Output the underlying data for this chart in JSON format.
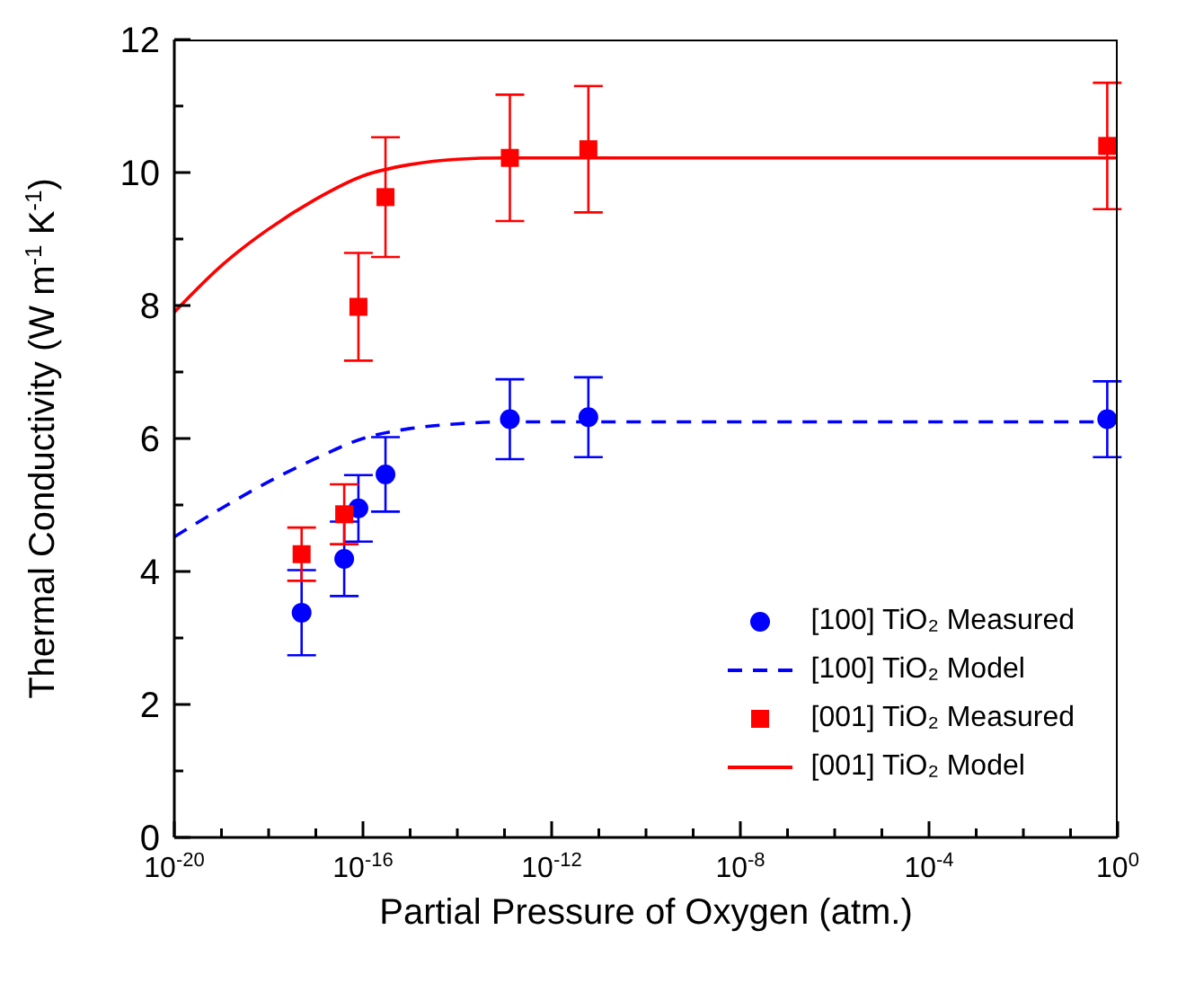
{
  "chart_data": {
    "type": "scatter",
    "xlabel": "Partial Pressure of Oxygen (atm.)",
    "ylabel": "Thermal Conductivity (W m$^{-1}$ K$^{-1}$)",
    "log": "x",
    "legend": "bottom right",
    "xlim": [
      1e-20,
      1
    ],
    "xticks": [
      {
        "value": 1e-20,
        "label": "10$^{-20}$"
      },
      {
        "value": 1e-19,
        "label": null
      },
      {
        "value": 1e-18,
        "label": null
      },
      {
        "value": 1e-17,
        "label": null
      },
      {
        "value": 1e-16,
        "label": "10$^{-16}$"
      },
      {
        "value": 1e-15,
        "label": null
      },
      {
        "value": 1e-14,
        "label": null
      },
      {
        "value": 1e-13,
        "label": null
      },
      {
        "value": 1e-12,
        "label": "10$^{-12}$"
      },
      {
        "value": 1e-11,
        "label": null
      },
      {
        "value": 1e-10,
        "label": null
      },
      {
        "value": 1e-09,
        "label": null
      },
      {
        "value": 1e-08,
        "label": "10$^{-8}$"
      },
      {
        "value": 1e-07,
        "label": null
      },
      {
        "value": 1e-06,
        "label": null
      },
      {
        "value": 1e-05,
        "label": null
      },
      {
        "value": 0.0001,
        "label": "10$^{-4}$"
      },
      {
        "value": 0.001,
        "label": null
      },
      {
        "value": 0.01,
        "label": null
      },
      {
        "value": 0.1,
        "label": null
      },
      {
        "value": 1,
        "label": "10$^{0}$"
      }
    ],
    "ylim": [
      0,
      12
    ],
    "yticks": [
      0,
      {
        "value": 1,
        "label": null
      },
      2,
      {
        "value": 3,
        "label": null
      },
      4,
      {
        "value": 5,
        "label": null
      },
      6,
      {
        "value": 7,
        "label": null
      },
      8,
      {
        "value": 9,
        "label": null
      },
      10,
      {
        "value": 11,
        "label": null
      },
      12
    ],
    "series": [
      {
        "name": "[100] TiO₂ Measured",
        "marker": "circle",
        "color": "#0000ff",
        "x": [
          5e-18,
          4e-17,
          8e-17,
          3e-16,
          1.3e-13,
          6e-12,
          0.6
        ],
        "values": [
          3.38,
          4.19,
          4.95,
          5.46,
          6.29,
          6.32,
          6.29
        ],
        "errors": [
          0.64,
          0.56,
          0.5,
          0.56,
          0.6,
          0.6,
          0.57
        ]
      },
      {
        "name": "[100] TiO₂ Model",
        "type": "line",
        "marker": "none",
        "line_style": "dashed",
        "color": "#0000ff",
        "x": [
          1e-20,
          1e-19,
          1e-18,
          1e-17,
          1e-16,
          1e-15,
          1e-14,
          1e-13,
          1
        ],
        "values": [
          4.52,
          4.95,
          5.35,
          5.7,
          6.0,
          6.15,
          6.22,
          6.25,
          6.25
        ]
      },
      {
        "name": "[001] TiO₂ Measured",
        "marker": "square",
        "color": "#ff0000",
        "x": [
          5e-18,
          4e-17,
          8e-17,
          3e-16,
          1.3e-13,
          6e-12,
          0.6
        ],
        "values": [
          4.26,
          4.86,
          7.98,
          9.63,
          10.22,
          10.35,
          10.4
        ],
        "errors": [
          0.4,
          0.45,
          0.81,
          0.9,
          0.95,
          0.95,
          0.95
        ]
      },
      {
        "name": "[001] TiO₂ Model",
        "type": "line",
        "marker": "none",
        "line_style": "solid",
        "color": "#ff0000",
        "x": [
          1e-20,
          1e-19,
          1e-18,
          1e-17,
          1e-16,
          1e-15,
          1e-14,
          1e-13,
          1
        ],
        "values": [
          7.9,
          8.6,
          9.15,
          9.6,
          9.95,
          10.12,
          10.2,
          10.22,
          10.22
        ]
      }
    ]
  }
}
